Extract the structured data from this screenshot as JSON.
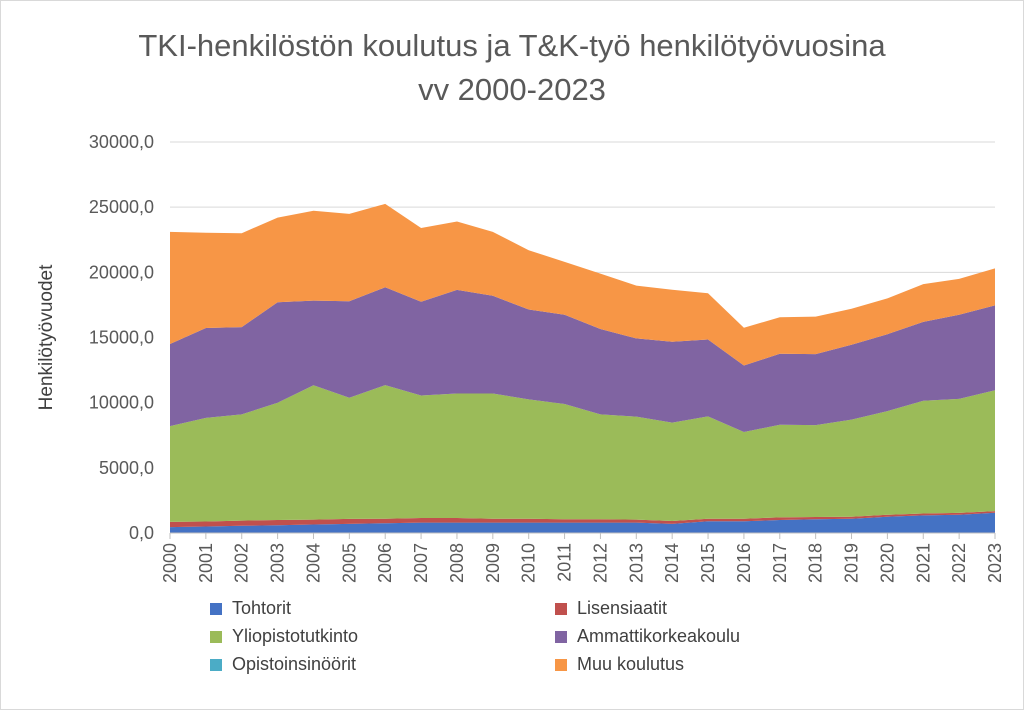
{
  "chart_data": {
    "type": "area",
    "stacked": true,
    "title_line1": "TKI-henkilöstön koulutus ja T&K-työ henkilötyövuosina",
    "title_line2": "vv 2000-2023",
    "ylabel": "Henkilötyövuodet",
    "xlabel": "",
    "ylim": [
      0,
      30000
    ],
    "yticks": [
      "0,0",
      "5000,0",
      "10000,0",
      "15000,0",
      "20000,0",
      "25000,0",
      "30000,0"
    ],
    "ytick_values": [
      0,
      5000,
      10000,
      15000,
      20000,
      25000,
      30000
    ],
    "grid": "horizontal",
    "legend_position": "bottom",
    "categories": [
      "2000",
      "2001",
      "2002",
      "2003",
      "2004",
      "2005",
      "2006",
      "2007",
      "2008",
      "2009",
      "2010",
      "2011",
      "2012",
      "2013",
      "2014",
      "2015",
      "2016",
      "2017",
      "2018",
      "2019",
      "2020",
      "2021",
      "2022",
      "2023"
    ],
    "series": [
      {
        "name": "Tohtorit",
        "color": "#4472C4",
        "values": [
          450,
          500,
          550,
          600,
          650,
          700,
          750,
          800,
          800,
          800,
          800,
          800,
          800,
          800,
          700,
          900,
          900,
          1000,
          1050,
          1100,
          1250,
          1350,
          1400,
          1550
        ]
      },
      {
        "name": "Lisensiaatit",
        "color": "#C0504D",
        "values": [
          400,
          380,
          400,
          400,
          380,
          380,
          350,
          350,
          350,
          300,
          300,
          250,
          250,
          230,
          220,
          200,
          200,
          200,
          180,
          150,
          150,
          150,
          140,
          130
        ]
      },
      {
        "name": "Yliopistotutkinto",
        "color": "#9BBB59",
        "values": [
          7350,
          7950,
          8150,
          9000,
          10300,
          9300,
          10250,
          9400,
          9550,
          9600,
          9150,
          8850,
          8050,
          7900,
          7550,
          7850,
          6650,
          7100,
          7050,
          7450,
          7950,
          8650,
          8750,
          9280
        ]
      },
      {
        "name": "Ammattikorkeakoulu",
        "color": "#8064A2",
        "values": [
          6300,
          6900,
          6700,
          7700,
          6500,
          7400,
          7500,
          7200,
          7950,
          7500,
          6900,
          6850,
          6550,
          6000,
          6200,
          5900,
          5100,
          5450,
          5450,
          5750,
          5900,
          6050,
          6460,
          6500
        ]
      },
      {
        "name": "Opistoinsinöörit",
        "color": "#4BACC6",
        "values": [
          0,
          0,
          0,
          0,
          0,
          0,
          0,
          0,
          0,
          0,
          0,
          0,
          0,
          0,
          0,
          0,
          0,
          0,
          0,
          0,
          0,
          0,
          0,
          0
        ]
      },
      {
        "name": "Muu koulutus",
        "color": "#F79646",
        "values": [
          8600,
          7300,
          7200,
          6500,
          6900,
          6700,
          6400,
          5650,
          5250,
          4900,
          4550,
          4050,
          4250,
          4050,
          4000,
          3550,
          2900,
          2800,
          2870,
          2750,
          2750,
          2900,
          2750,
          2840
        ]
      }
    ]
  }
}
